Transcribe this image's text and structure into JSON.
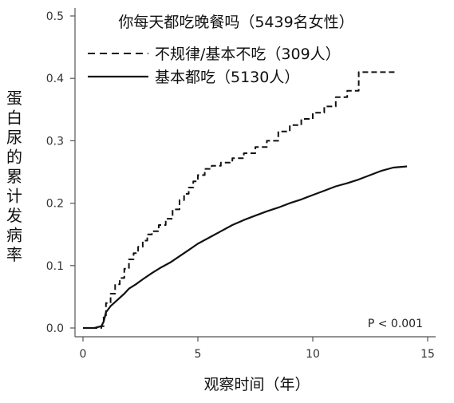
{
  "chart_data": {
    "type": "line",
    "title": "你每天都吃晚餐吗（5439名女性）",
    "xlabel": "观察时间（年）",
    "ylabel": "蛋白尿的累计发病率",
    "xlim": [
      0,
      15
    ],
    "ylim": [
      0,
      0.5
    ],
    "xticks": [
      0,
      5,
      10,
      15
    ],
    "yticks": [
      0.0,
      0.1,
      0.2,
      0.3,
      0.4,
      0.5
    ],
    "xtick_labels": [
      "0",
      "5",
      "10",
      "15"
    ],
    "ytick_labels": [
      "0.0",
      "0.1",
      "0.2",
      "0.3",
      "0.4",
      "0.5"
    ],
    "legend_position": "top-left",
    "grid": false,
    "annotation": "P < 0.001",
    "series": [
      {
        "name": "不规律/基本不吃（309人）",
        "style": "dashed",
        "color": "#111111",
        "step": true,
        "x": [
          0,
          0.5,
          0.8,
          0.9,
          1.0,
          1.2,
          1.4,
          1.6,
          1.8,
          2.0,
          2.2,
          2.4,
          2.6,
          2.8,
          3.0,
          3.3,
          3.6,
          3.9,
          4.2,
          4.4,
          4.6,
          4.8,
          5.0,
          5.3,
          5.6,
          6.0,
          6.5,
          7.0,
          7.5,
          8.0,
          8.5,
          9.0,
          9.5,
          10.0,
          10.5,
          11.0,
          11.5,
          12.0,
          12.5,
          13.0,
          13.6
        ],
        "y": [
          0,
          0,
          0.003,
          0.02,
          0.04,
          0.055,
          0.07,
          0.08,
          0.095,
          0.11,
          0.12,
          0.13,
          0.14,
          0.15,
          0.155,
          0.165,
          0.175,
          0.19,
          0.205,
          0.215,
          0.225,
          0.235,
          0.245,
          0.255,
          0.26,
          0.265,
          0.272,
          0.28,
          0.29,
          0.3,
          0.315,
          0.325,
          0.335,
          0.345,
          0.355,
          0.37,
          0.38,
          0.41,
          0.41,
          0.41,
          0.41
        ]
      },
      {
        "name": "基本都吃（5130人）",
        "style": "solid",
        "color": "#111111",
        "step": false,
        "x": [
          0,
          0.5,
          0.8,
          0.9,
          1.0,
          1.2,
          1.5,
          1.8,
          2.0,
          2.3,
          2.6,
          3.0,
          3.4,
          3.8,
          4.2,
          4.6,
          5.0,
          5.5,
          6.0,
          6.5,
          7.0,
          7.5,
          8.0,
          8.5,
          9.0,
          9.5,
          10.0,
          10.5,
          11.0,
          11.5,
          12.0,
          12.5,
          13.0,
          13.5,
          14.1
        ],
        "y": [
          0,
          0,
          0.003,
          0.01,
          0.025,
          0.035,
          0.045,
          0.055,
          0.063,
          0.07,
          0.078,
          0.088,
          0.097,
          0.105,
          0.115,
          0.125,
          0.135,
          0.145,
          0.155,
          0.165,
          0.173,
          0.18,
          0.187,
          0.193,
          0.2,
          0.206,
          0.213,
          0.22,
          0.227,
          0.232,
          0.238,
          0.245,
          0.252,
          0.257,
          0.259
        ]
      }
    ]
  }
}
